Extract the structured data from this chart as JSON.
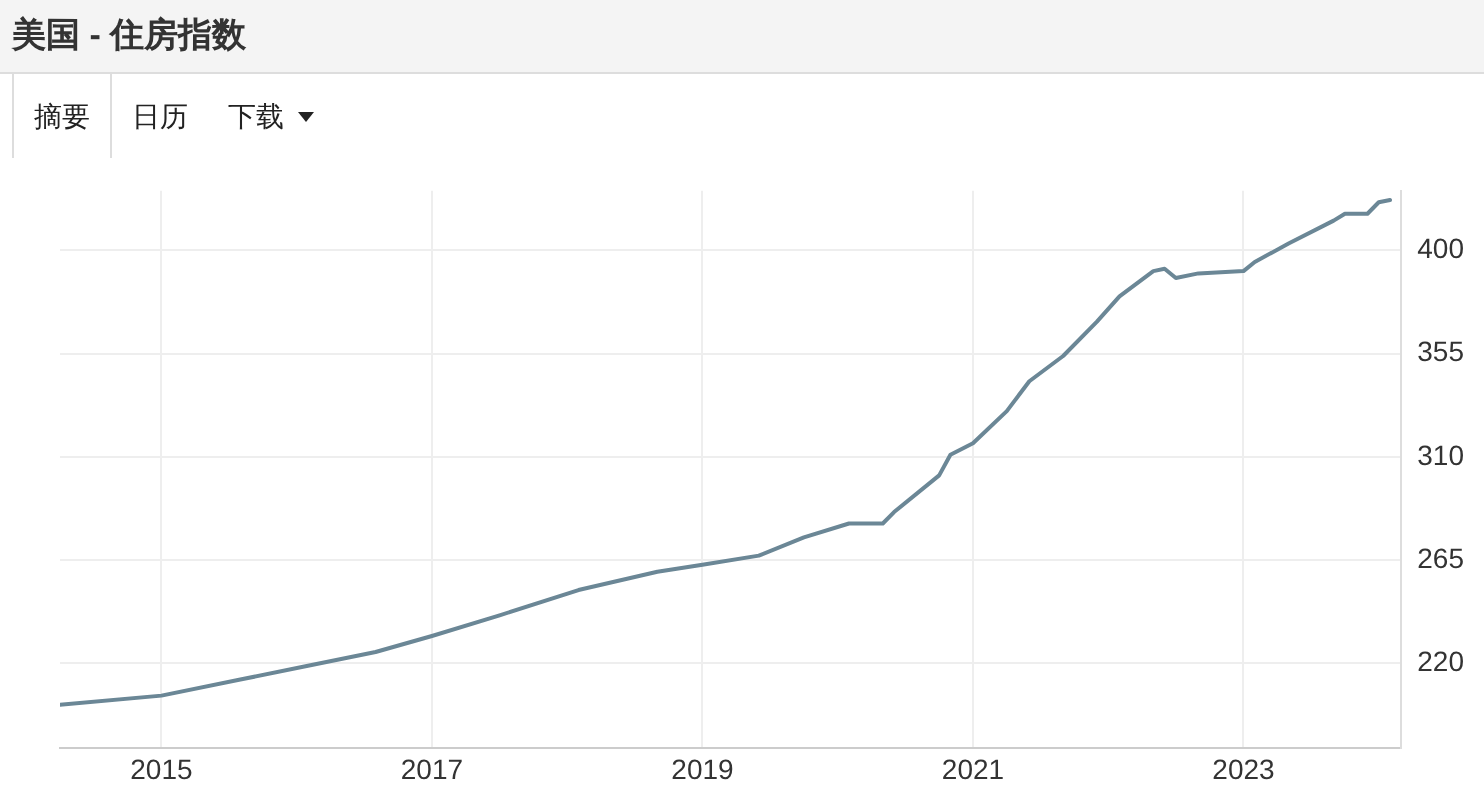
{
  "chart_data": {
    "type": "line",
    "title": "美国 - 住房指数",
    "annotations": [
      "摘要",
      "日历",
      "下载"
    ],
    "series": [
      {
        "color": "#6b8796",
        "x": [
          "2014-04",
          "2015-01",
          "2015-08",
          "2016-02",
          "2016-08",
          "2017-01",
          "2017-07",
          "2018-02",
          "2018-09",
          "2019-01",
          "2019-06",
          "2019-10",
          "2020-02",
          "2020-03",
          "2020-05",
          "2020-06",
          "2020-10",
          "2020-11",
          "2021-01",
          "2021-04",
          "2021-06",
          "2021-09",
          "2021-12",
          "2022-02",
          "2022-05",
          "2022-06",
          "2022-07",
          "2022-09",
          "2023-01",
          "2023-02",
          "2023-05",
          "2023-09",
          "2023-10",
          "2023-12",
          "2024-01",
          "2024-02"
        ],
        "values": [
          202,
          206,
          213,
          219,
          225,
          232,
          241,
          252,
          260,
          263,
          267,
          275,
          281,
          281,
          281,
          286,
          302,
          311,
          316,
          330,
          343,
          354,
          369,
          380,
          391,
          392,
          388,
          390,
          391,
          395,
          403,
          413,
          416,
          416,
          421,
          422
        ]
      }
    ],
    "xlim": [
      "2014-04",
      "2024-03"
    ],
    "xticks": [
      "2015",
      "2017",
      "2019",
      "2021",
      "2023"
    ],
    "ylim": [
      183,
      426
    ],
    "yticks": [
      220,
      265,
      310,
      355,
      400
    ],
    "grid": true,
    "legend": false,
    "marker": "none",
    "line_style": "solid"
  }
}
